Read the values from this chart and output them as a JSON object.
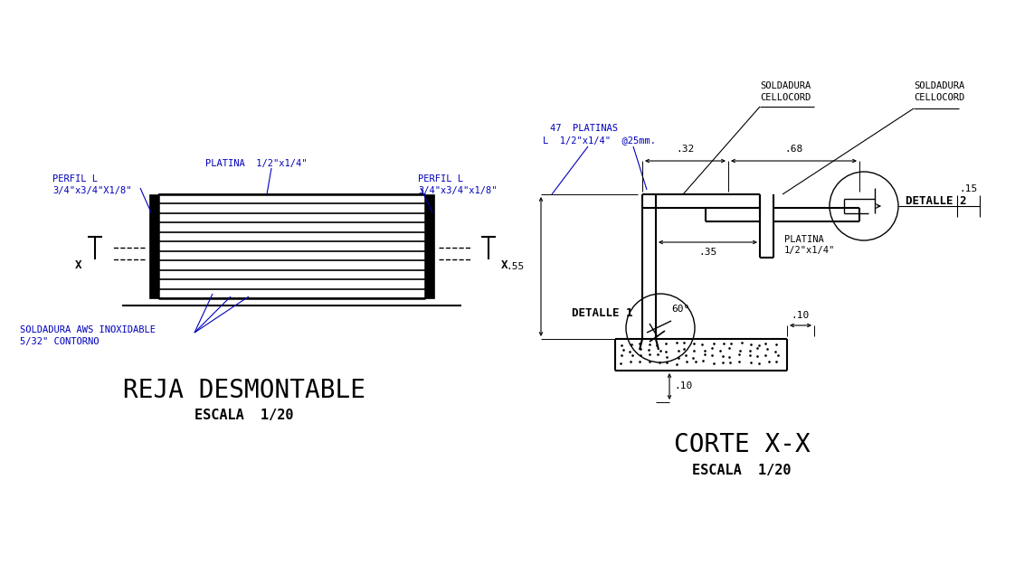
{
  "bg_color": "#ffffff",
  "line_color": "#000000",
  "blue_color": "#0000bb",
  "title1": "REJA DESMONTABLE",
  "subtitle1": "ESCALA  1/20",
  "title2": "CORTE X-X",
  "subtitle2": "ESCALA  1/20",
  "label_perfil_l_left": "PERFIL L\n3/4\"x3/4\"X1/8\"",
  "label_platina_top": "PLATINA  1/2\"x1/4\"",
  "label_perfil_l_right": "PERFIL L\n3/4\"x3/4\"x1/8\"",
  "label_soldadura_aws": "SOLDADURA AWS INOXIDABLE\n5/32\" CONTORNO",
  "label_47platinas": "47  PLATINAS",
  "label_L": "L  1/2\"x1/4\"  @25mm.",
  "label_soldadura1": "SOLDADURA\nCELLOCORD",
  "label_soldadura2": "SOLDADURA\nCELLOCORD",
  "label_detalle1": "DETALLE 1",
  "label_detalle2": "DETALLE 2",
  "label_platina2": "PLATINA\n1/2\"x1/4\"",
  "dim_032": ".32",
  "dim_068": ".68",
  "dim_055": ".55",
  "dim_035": ".35",
  "dim_010a": ".10",
  "dim_010b": ".10",
  "dim_015": ".15",
  "dim_60deg": "60°"
}
